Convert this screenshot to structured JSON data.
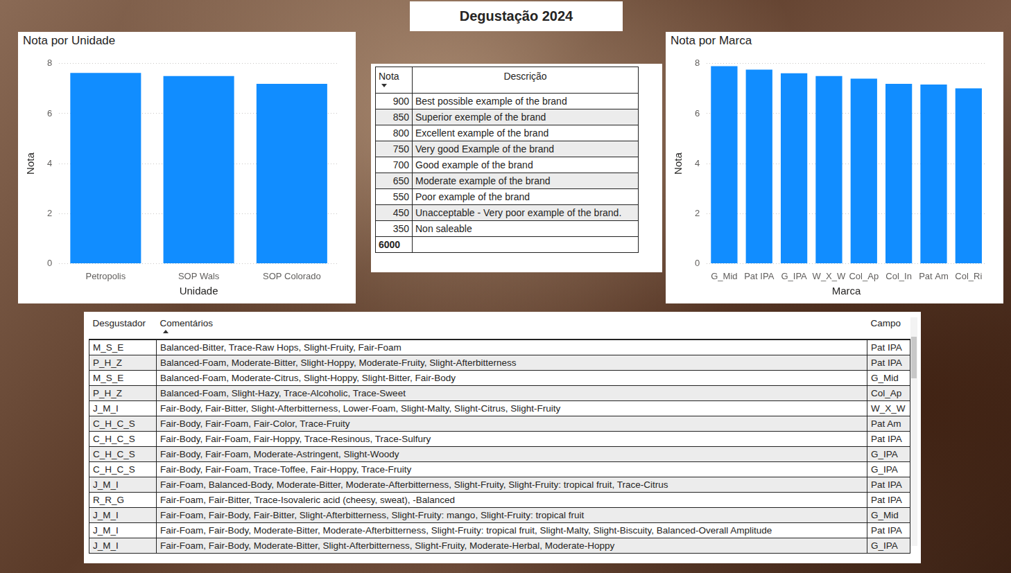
{
  "page_title": "Degustação 2024",
  "chart_data": [
    {
      "type": "bar",
      "title": "Nota por Unidade",
      "x_label": "Unidade",
      "y_label": "Nota",
      "categories": [
        "Petropolis",
        "SOP Wals",
        "SOP Colorado"
      ],
      "values": [
        7.63,
        7.5,
        7.19
      ],
      "color": "#118DFF",
      "ylim": [
        0,
        8
      ],
      "yticks": [
        0,
        2,
        4,
        6,
        8
      ],
      "grid": true
    },
    {
      "type": "bar",
      "title": "Nota por Marca",
      "x_label": "Marca",
      "y_label": "Nota",
      "categories": [
        "G_Mid",
        "Pat IPA",
        "G_IPA",
        "W_X_W",
        "Col_Ap",
        "Col_In",
        "Pat Am",
        "Col_Ri"
      ],
      "values": [
        7.9,
        7.76,
        7.61,
        7.5,
        7.4,
        7.19,
        7.16,
        7.01
      ],
      "color": "#118DFF",
      "ylim": [
        0,
        8
      ],
      "yticks": [
        0,
        2,
        4,
        6,
        8
      ],
      "grid": true
    }
  ],
  "score_table": {
    "headers": [
      "Nota",
      "Descrição"
    ],
    "rows": [
      [
        900,
        "Best possible example of the brand"
      ],
      [
        850,
        "Superior exemple of the brand"
      ],
      [
        800,
        "Excellent example of the brand"
      ],
      [
        750,
        "Very good Example of the brand"
      ],
      [
        700,
        "Good example of the brand"
      ],
      [
        650,
        "Moderate example of the brand"
      ],
      [
        550,
        "Poor example of the brand"
      ],
      [
        450,
        "Unacceptable - Very poor example of the brand."
      ],
      [
        350,
        "Non saleable"
      ]
    ],
    "total": 6000
  },
  "comments_table": {
    "headers": [
      "Desgustador",
      "Comentários",
      "Campo"
    ],
    "rows": [
      [
        "M_S_E",
        "Balanced-Bitter, Trace-Raw Hops, Slight-Fruity, Fair-Foam",
        "Pat IPA"
      ],
      [
        "P_H_Z",
        "Balanced-Foam, Moderate-Bitter, Slight-Hoppy, Moderate-Fruity, Slight-Afterbitterness",
        "Pat IPA"
      ],
      [
        "M_S_E",
        "Balanced-Foam, Moderate-Citrus, Slight-Hoppy, Slight-Bitter, Fair-Body",
        "G_Mid"
      ],
      [
        "P_H_Z",
        "Balanced-Foam, Slight-Hazy, Trace-Alcoholic, Trace-Sweet",
        "Col_Ap"
      ],
      [
        "J_M_I",
        "Fair-Body, Fair-Bitter, Slight-Afterbitterness, Lower-Foam, Slight-Malty, Slight-Citrus, Slight-Fruity",
        "W_X_W"
      ],
      [
        "C_H_C_S",
        "Fair-Body, Fair-Foam, Fair-Color, Trace-Fruity",
        "Pat Am"
      ],
      [
        "C_H_C_S",
        "Fair-Body, Fair-Foam, Fair-Hoppy, Trace-Resinous, Trace-Sulfury",
        "Pat IPA"
      ],
      [
        "C_H_C_S",
        "Fair-Body, Fair-Foam, Moderate-Astringent, Slight-Woody",
        "G_IPA"
      ],
      [
        "C_H_C_S",
        "Fair-Body, Fair-Foam, Trace-Toffee, Fair-Hoppy, Trace-Fruity",
        "G_IPA"
      ],
      [
        "J_M_I",
        "Fair-Foam, Balanced-Body, Moderate-Bitter, Moderate-Afterbitterness, Slight-Fruity, Slight-Fruity: tropical fruit, Trace-Citrus",
        "Pat IPA"
      ],
      [
        "R_R_G",
        "Fair-Foam, Fair-Bitter, Trace-Isovaleric acid (cheesy, sweat), -Balanced",
        "Pat IPA"
      ],
      [
        "J_M_I",
        "Fair-Foam, Fair-Body, Fair-Bitter, Slight-Afterbitterness, Slight-Fruity: mango, Slight-Fruity: tropical fruit",
        "G_Mid"
      ],
      [
        "J_M_I",
        "Fair-Foam, Fair-Body, Moderate-Bitter, Moderate-Afterbitterness, Slight-Fruity: tropical fruit, Slight-Malty, Slight-Biscuity, Balanced-Overall Amplitude",
        "Pat IPA"
      ],
      [
        "J_M_I",
        "Fair-Foam, Fair-Body, Moderate-Bitter, Slight-Afterbitterness, Slight-Fruity, Moderate-Herbal, Moderate-Hoppy",
        "G_IPA"
      ]
    ]
  }
}
